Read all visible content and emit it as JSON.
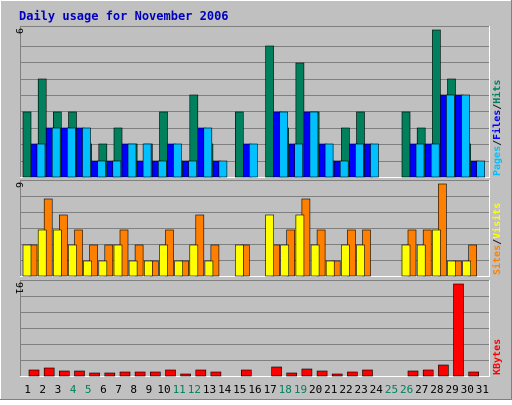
{
  "chart_data": {
    "type": "bar",
    "title": "Daily usage for November 2006",
    "x_labels": [
      "1",
      "2",
      "3",
      "4",
      "5",
      "6",
      "7",
      "8",
      "9",
      "10",
      "11",
      "12",
      "13",
      "14",
      "15",
      "16",
      "17",
      "18",
      "19",
      "20",
      "21",
      "22",
      "23",
      "24",
      "25",
      "26",
      "27",
      "28",
      "29",
      "30",
      "31"
    ],
    "weekend_days": [
      4,
      5,
      11,
      12,
      18,
      19,
      25,
      26
    ],
    "panels": [
      {
        "id": "hits-files-pages",
        "y_max_label": "9",
        "y_max": 9,
        "right_legend": [
          {
            "text": "Pages",
            "color": "#00c0ff"
          },
          {
            "text": "/",
            "color": "#202020"
          },
          {
            "text": "Files",
            "color": "#0000ff"
          },
          {
            "text": "/",
            "color": "#202020"
          },
          {
            "text": "Hits",
            "color": "#00805c"
          }
        ],
        "series": [
          {
            "name": "Hits",
            "color": "#00805c",
            "values": [
              4,
              6,
              4,
              4,
              2,
              2,
              3,
              2,
              2,
              4,
              1,
              5,
              2,
              0,
              4,
              0,
              8,
              3,
              7,
              4,
              1,
              3,
              4,
              0,
              0,
              4,
              3,
              9,
              6,
              2,
              0
            ]
          },
          {
            "name": "Files",
            "color": "#0000ff",
            "values": [
              2,
              3,
              3,
              3,
              1,
              1,
              2,
              1,
              1,
              2,
              1,
              3,
              1,
              0,
              2,
              0,
              4,
              2,
              4,
              2,
              1,
              2,
              2,
              0,
              0,
              2,
              2,
              5,
              5,
              1,
              0
            ]
          },
          {
            "name": "Pages",
            "color": "#00c0ff",
            "values": [
              2,
              3,
              3,
              3,
              1,
              1,
              2,
              2,
              1,
              2,
              1,
              3,
              1,
              0,
              2,
              0,
              4,
              2,
              4,
              2,
              1,
              2,
              2,
              0,
              0,
              2,
              2,
              5,
              5,
              1,
              0
            ]
          }
        ]
      },
      {
        "id": "visits-sites",
        "y_max_label": "6",
        "y_max": 6,
        "right_legend": [
          {
            "text": "Sites",
            "color": "#ff8000"
          },
          {
            "text": "/",
            "color": "#202020"
          },
          {
            "text": "Visits",
            "color": "#ffff00"
          }
        ],
        "series": [
          {
            "name": "Visits",
            "color": "#ffff00",
            "values": [
              2,
              3,
              3,
              2,
              1,
              1,
              2,
              1,
              1,
              2,
              1,
              2,
              1,
              0,
              2,
              0,
              4,
              2,
              4,
              2,
              1,
              2,
              2,
              0,
              0,
              2,
              2,
              3,
              1,
              1,
              0
            ]
          },
          {
            "name": "Sites",
            "color": "#ff8000",
            "values": [
              2,
              5,
              4,
              3,
              2,
              2,
              3,
              2,
              1,
              3,
              1,
              4,
              2,
              0,
              2,
              0,
              2,
              3,
              5,
              3,
              1,
              3,
              3,
              0,
              0,
              3,
              3,
              6,
              1,
              2,
              0
            ]
          }
        ]
      },
      {
        "id": "kbytes",
        "y_max_label": "91",
        "y_max": 91,
        "right_legend": [
          {
            "text": "KBytes",
            "color": "#ff0000"
          }
        ],
        "series": [
          {
            "name": "KBytes",
            "color": "#ff0000",
            "values": [
              6,
              8,
              5,
              5,
              3,
              3,
              4,
              4,
              4,
              6,
              1,
              6,
              4,
              0,
              6,
              0,
              9,
              3,
              7,
              5,
              1,
              4,
              6,
              0,
              0,
              5,
              6,
              11,
              91,
              4,
              0
            ]
          }
        ]
      }
    ]
  }
}
